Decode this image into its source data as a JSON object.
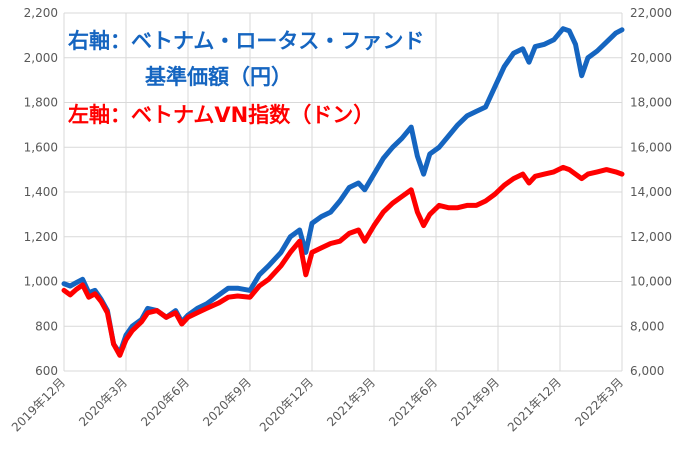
{
  "chart_data": {
    "type": "line",
    "colors": {
      "fund": "#1565c0",
      "index": "#ff0000",
      "grid": "#d9d9d9",
      "axis_text": "#595959"
    },
    "legend": {
      "right": {
        "prefix": "右軸：",
        "line1": "ベトナム・ロータス・ファンド",
        "line2": "基準価額（円）",
        "color": "#1565c0"
      },
      "left": {
        "prefix": "左軸：",
        "text": "ベトナムVN指数（ドン）",
        "color": "#ff0000"
      }
    },
    "y_left": {
      "ylim": [
        600,
        2200
      ],
      "ticks": [
        "600",
        "800",
        "1,000",
        "1,200",
        "1,400",
        "1,600",
        "1,800",
        "2,000",
        "2,200"
      ]
    },
    "y_right": {
      "ylim": [
        6000,
        22000
      ],
      "ticks": [
        "6,000",
        "8,000",
        "10,000",
        "12,000",
        "14,000",
        "16,000",
        "18,000",
        "20,000",
        "22,000"
      ]
    },
    "x_ticks": [
      "2019年12月",
      "2020年3月",
      "2020年6月",
      "2020年9月",
      "2020年12月",
      "2021年3月",
      "2021年6月",
      "2021年9月",
      "2021年12月",
      "2022年3月"
    ],
    "series": [
      {
        "name": "ベトナム・ロータス・ファンド",
        "axis": "right",
        "color": "#1565c0",
        "points": [
          [
            0,
            9900
          ],
          [
            0.2,
            9800
          ],
          [
            0.4,
            9950
          ],
          [
            0.6,
            10100
          ],
          [
            0.8,
            9500
          ],
          [
            1.0,
            9600
          ],
          [
            1.2,
            9200
          ],
          [
            1.4,
            8700
          ],
          [
            1.6,
            7200
          ],
          [
            1.8,
            6800
          ],
          [
            2.0,
            7600
          ],
          [
            2.2,
            8000
          ],
          [
            2.5,
            8300
          ],
          [
            2.7,
            8800
          ],
          [
            3.0,
            8700
          ],
          [
            3.3,
            8400
          ],
          [
            3.6,
            8700
          ],
          [
            3.8,
            8200
          ],
          [
            4.0,
            8500
          ],
          [
            4.3,
            8800
          ],
          [
            4.6,
            9000
          ],
          [
            5.0,
            9400
          ],
          [
            5.3,
            9700
          ],
          [
            5.6,
            9700
          ],
          [
            6.0,
            9600
          ],
          [
            6.3,
            10300
          ],
          [
            6.6,
            10700
          ],
          [
            7.0,
            11300
          ],
          [
            7.3,
            12000
          ],
          [
            7.6,
            12300
          ],
          [
            7.8,
            11300
          ],
          [
            8.0,
            12600
          ],
          [
            8.3,
            12900
          ],
          [
            8.6,
            13100
          ],
          [
            8.9,
            13600
          ],
          [
            9.2,
            14200
          ],
          [
            9.5,
            14400
          ],
          [
            9.7,
            14100
          ],
          [
            10.0,
            14800
          ],
          [
            10.3,
            15500
          ],
          [
            10.6,
            16000
          ],
          [
            10.9,
            16400
          ],
          [
            11.2,
            16900
          ],
          [
            11.4,
            15600
          ],
          [
            11.6,
            14800
          ],
          [
            11.8,
            15700
          ],
          [
            12.1,
            16000
          ],
          [
            12.4,
            16500
          ],
          [
            12.7,
            17000
          ],
          [
            13.0,
            17400
          ],
          [
            13.3,
            17600
          ],
          [
            13.6,
            17800
          ],
          [
            13.9,
            18700
          ],
          [
            14.2,
            19600
          ],
          [
            14.5,
            20200
          ],
          [
            14.8,
            20400
          ],
          [
            15.0,
            19800
          ],
          [
            15.2,
            20500
          ],
          [
            15.5,
            20600
          ],
          [
            15.8,
            20800
          ],
          [
            16.1,
            21300
          ],
          [
            16.3,
            21200
          ],
          [
            16.5,
            20600
          ],
          [
            16.7,
            19200
          ],
          [
            16.9,
            20000
          ],
          [
            17.2,
            20300
          ],
          [
            17.5,
            20700
          ],
          [
            17.8,
            21100
          ],
          [
            18.0,
            21250
          ]
        ]
      },
      {
        "name": "ベトナムVN指数",
        "axis": "left",
        "color": "#ff0000",
        "points": [
          [
            0,
            960
          ],
          [
            0.2,
            940
          ],
          [
            0.4,
            965
          ],
          [
            0.6,
            985
          ],
          [
            0.8,
            930
          ],
          [
            1.0,
            945
          ],
          [
            1.2,
            910
          ],
          [
            1.4,
            860
          ],
          [
            1.6,
            720
          ],
          [
            1.8,
            670
          ],
          [
            2.0,
            740
          ],
          [
            2.2,
            780
          ],
          [
            2.5,
            820
          ],
          [
            2.7,
            860
          ],
          [
            3.0,
            870
          ],
          [
            3.3,
            840
          ],
          [
            3.6,
            860
          ],
          [
            3.8,
            810
          ],
          [
            4.0,
            840
          ],
          [
            4.3,
            860
          ],
          [
            4.6,
            880
          ],
          [
            5.0,
            905
          ],
          [
            5.3,
            930
          ],
          [
            5.6,
            935
          ],
          [
            6.0,
            930
          ],
          [
            6.3,
            980
          ],
          [
            6.6,
            1010
          ],
          [
            7.0,
            1070
          ],
          [
            7.3,
            1130
          ],
          [
            7.6,
            1180
          ],
          [
            7.8,
            1030
          ],
          [
            8.0,
            1130
          ],
          [
            8.3,
            1150
          ],
          [
            8.6,
            1170
          ],
          [
            8.9,
            1180
          ],
          [
            9.2,
            1215
          ],
          [
            9.5,
            1230
          ],
          [
            9.7,
            1180
          ],
          [
            10.0,
            1250
          ],
          [
            10.3,
            1310
          ],
          [
            10.6,
            1350
          ],
          [
            10.9,
            1380
          ],
          [
            11.2,
            1410
          ],
          [
            11.4,
            1310
          ],
          [
            11.6,
            1250
          ],
          [
            11.8,
            1300
          ],
          [
            12.1,
            1340
          ],
          [
            12.4,
            1330
          ],
          [
            12.7,
            1330
          ],
          [
            13.0,
            1340
          ],
          [
            13.3,
            1340
          ],
          [
            13.6,
            1360
          ],
          [
            13.9,
            1390
          ],
          [
            14.2,
            1430
          ],
          [
            14.5,
            1460
          ],
          [
            14.8,
            1480
          ],
          [
            15.0,
            1440
          ],
          [
            15.2,
            1470
          ],
          [
            15.5,
            1480
          ],
          [
            15.8,
            1490
          ],
          [
            16.1,
            1510
          ],
          [
            16.3,
            1500
          ],
          [
            16.5,
            1480
          ],
          [
            16.7,
            1460
          ],
          [
            16.9,
            1480
          ],
          [
            17.2,
            1490
          ],
          [
            17.5,
            1500
          ],
          [
            17.8,
            1490
          ],
          [
            18.0,
            1480
          ]
        ]
      }
    ]
  }
}
